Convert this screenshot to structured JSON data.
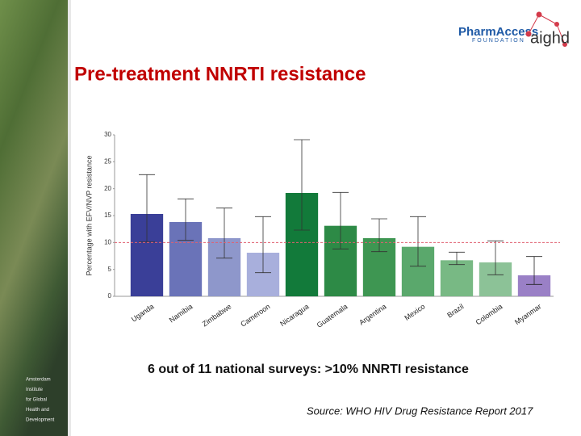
{
  "slide": {
    "title": "Pre-treatment NNRTI resistance",
    "subtitle": "6 out of 11 national surveys: >10% NNRTI resistance",
    "source": "Source: WHO HIV Drug Resistance Report 2017",
    "logo_left": "PharmAccess",
    "logo_left_sub": "FOUNDATION",
    "logo_right": "aighd",
    "sidebar_lines": [
      "Amsterdam",
      "Institute",
      "for Global",
      "Health and",
      "Development"
    ]
  },
  "chart_data": {
    "type": "bar",
    "y_label": "Percentage with EFV/NVP resistance",
    "categories": [
      "Uganda",
      "Namibia",
      "Zimbabwe",
      "Cameroon",
      "Nicaragua",
      "Guatemala",
      "Argentina",
      "Mexico",
      "Brazil",
      "Colombia",
      "Myanmar"
    ],
    "values": [
      15.3,
      13.8,
      10.8,
      8.1,
      19.2,
      13.1,
      10.8,
      9.2,
      6.7,
      6.3,
      3.9
    ],
    "ci_low": [
      10.1,
      10.4,
      7.1,
      4.4,
      12.3,
      8.8,
      8.3,
      5.6,
      5.9,
      4.0,
      2.2
    ],
    "ci_high": [
      22.6,
      18.1,
      16.4,
      14.8,
      29.1,
      19.3,
      14.4,
      14.8,
      8.2,
      10.3,
      7.4
    ],
    "colors": [
      "#3a3f98",
      "#6a73b8",
      "#8e97cb",
      "#a8afdc",
      "#127a3a",
      "#2d8a46",
      "#3e9652",
      "#5aa86c",
      "#78b984",
      "#8cc297",
      "#9a80c6"
    ],
    "reference_line": 10,
    "reference_color": "#e06070",
    "ylim": [
      0,
      30
    ],
    "yticks": [
      0,
      5,
      10,
      15,
      20,
      25,
      30
    ]
  }
}
